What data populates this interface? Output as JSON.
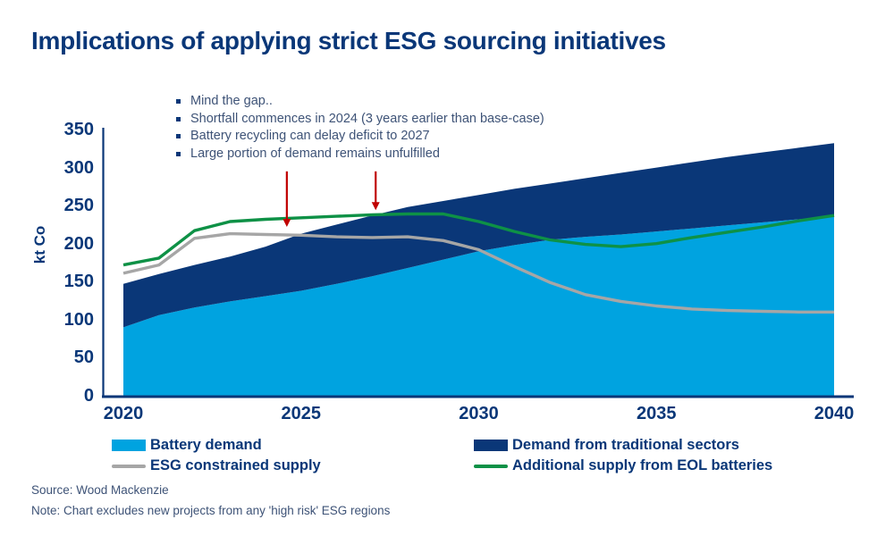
{
  "title": "Implications of applying strict ESG sourcing initiatives",
  "annotations": {
    "bullets": [
      "Mind the gap..",
      "Shortfall commences in 2024 (3 years earlier than base-case)",
      "Battery recycling can delay deficit to 2027",
      "Large portion of demand remains unfulfilled"
    ]
  },
  "colors": {
    "navy": "#0A3778",
    "light_blue": "#00A3E0",
    "gray": "#A6A6A6",
    "green": "#0E9146",
    "red_arrow": "#C00000",
    "annotation_text": "#3E5377"
  },
  "chart_data": {
    "type": "area",
    "title": "Implications of applying strict ESG sourcing initiatives",
    "xlabel": "",
    "ylabel": "kt Co",
    "ylim": [
      0,
      350
    ],
    "grid": false,
    "legend_position": "bottom",
    "x": [
      2020,
      2021,
      2022,
      2023,
      2024,
      2025,
      2026,
      2027,
      2028,
      2029,
      2030,
      2031,
      2032,
      2033,
      2034,
      2035,
      2036,
      2037,
      2038,
      2039,
      2040
    ],
    "x_ticks": [
      2020,
      2025,
      2030,
      2035,
      2040
    ],
    "y_ticks": [
      0,
      50,
      100,
      150,
      200,
      250,
      300,
      350
    ],
    "series": [
      {
        "key": "battery",
        "name": "Battery demand",
        "type": "area",
        "stacked": true,
        "color": "#00A3E0",
        "values": [
          90,
          106,
          116,
          124,
          131,
          138,
          147,
          157,
          168,
          179,
          190,
          198,
          205,
          209,
          212,
          216,
          220,
          224,
          228,
          232,
          235
        ]
      },
      {
        "key": "traditional",
        "name": "Demand from traditional sectors",
        "type": "area",
        "stacked": true,
        "stacked_on": "Battery demand",
        "color": "#0A3778",
        "values": [
          57,
          54,
          56,
          59,
          65,
          75,
          78,
          80,
          80,
          77,
          74,
          74,
          74,
          77,
          81,
          84,
          87,
          90,
          92,
          94,
          97
        ],
        "stacked_top_total_demand": [
          147,
          160,
          172,
          183,
          196,
          213,
          225,
          237,
          248,
          256,
          264,
          272,
          279,
          286,
          293,
          300,
          307,
          314,
          320,
          326,
          332
        ]
      },
      {
        "key": "esg",
        "name": "ESG constrained supply",
        "type": "line",
        "color": "#A6A6A6",
        "values": [
          161,
          172,
          207,
          213,
          212,
          211,
          209,
          208,
          209,
          204,
          192,
          170,
          149,
          133,
          124,
          118,
          114,
          112,
          111,
          110,
          110
        ]
      },
      {
        "key": "eol",
        "name": "Additional supply from EOL batteries",
        "type": "line",
        "color": "#0E9146",
        "values": [
          172,
          181,
          217,
          229,
          232,
          234,
          236,
          238,
          239,
          239,
          229,
          216,
          205,
          199,
          196,
          200,
          208,
          215,
          222,
          230,
          237
        ]
      }
    ],
    "arrows": [
      {
        "x": 2024.6,
        "y_from": 295,
        "y_to": 222
      },
      {
        "x": 2027.1,
        "y_from": 295,
        "y_to": 244
      }
    ]
  },
  "legend": {
    "items": [
      {
        "label": "Battery demand",
        "swatch": "rect",
        "color": "#00A3E0"
      },
      {
        "label": "Demand from traditional sectors",
        "swatch": "rect",
        "color": "#0A3778"
      },
      {
        "label": "ESG constrained supply",
        "swatch": "line",
        "color": "#A6A6A6"
      },
      {
        "label": "Additional supply from EOL batteries",
        "swatch": "line",
        "color": "#0E9146"
      }
    ]
  },
  "footer": {
    "source": "Source: Wood Mackenzie",
    "note": "Note: Chart excludes new projects from any 'high risk' ESG regions"
  }
}
